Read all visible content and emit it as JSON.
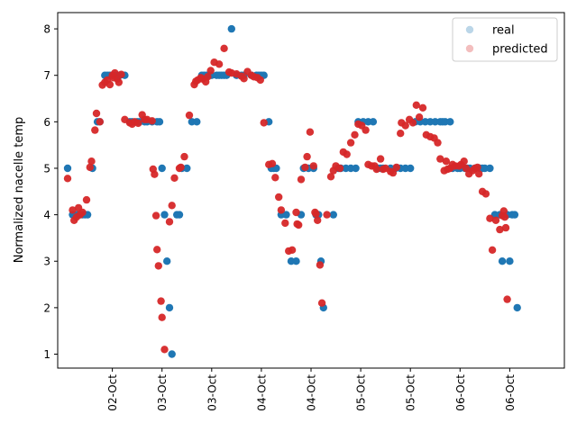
{
  "chart_data": {
    "type": "scatter",
    "title": "",
    "xlabel": "",
    "ylabel": "Normalized nacelle temp",
    "ylim": [
      0.7,
      8.35
    ],
    "xlim": [
      -0.2,
      10.0
    ],
    "yticks": [
      1,
      2,
      3,
      4,
      5,
      6,
      7,
      8
    ],
    "xticks": [
      {
        "x": 0.9,
        "label": "02-Oct"
      },
      {
        "x": 1.9,
        "label": "03-Oct"
      },
      {
        "x": 2.9,
        "label": "03-Oct"
      },
      {
        "x": 3.9,
        "label": "04-Oct"
      },
      {
        "x": 4.9,
        "label": "04-Oct"
      },
      {
        "x": 5.9,
        "label": "05-Oct"
      },
      {
        "x": 6.9,
        "label": "05-Oct"
      },
      {
        "x": 7.9,
        "label": "06-Oct"
      },
      {
        "x": 8.9,
        "label": "06-Oct"
      }
    ],
    "grid": false,
    "legend_position": "top-right",
    "series": [
      {
        "name": "real",
        "color": "#1f77b4",
        "points": [
          [
            0.0,
            5
          ],
          [
            0.1,
            4
          ],
          [
            0.15,
            4
          ],
          [
            0.2,
            4
          ],
          [
            0.25,
            4
          ],
          [
            0.3,
            4
          ],
          [
            0.35,
            4
          ],
          [
            0.4,
            4
          ],
          [
            0.5,
            5
          ],
          [
            0.6,
            6
          ],
          [
            0.65,
            6
          ],
          [
            0.75,
            7
          ],
          [
            0.8,
            7
          ],
          [
            0.85,
            7
          ],
          [
            0.9,
            7
          ],
          [
            0.95,
            7
          ],
          [
            1.0,
            7
          ],
          [
            1.05,
            7
          ],
          [
            1.15,
            7
          ],
          [
            1.25,
            6
          ],
          [
            1.3,
            6
          ],
          [
            1.4,
            6
          ],
          [
            1.45,
            6
          ],
          [
            1.55,
            6
          ],
          [
            1.6,
            6
          ],
          [
            1.7,
            6
          ],
          [
            1.8,
            6
          ],
          [
            1.85,
            6
          ],
          [
            1.9,
            5
          ],
          [
            1.95,
            4
          ],
          [
            2.0,
            3
          ],
          [
            2.05,
            2
          ],
          [
            2.1,
            1
          ],
          [
            2.2,
            4
          ],
          [
            2.25,
            4
          ],
          [
            2.3,
            5
          ],
          [
            2.4,
            5
          ],
          [
            2.5,
            6
          ],
          [
            2.6,
            6
          ],
          [
            2.7,
            7
          ],
          [
            2.75,
            7
          ],
          [
            2.8,
            7
          ],
          [
            2.85,
            7
          ],
          [
            2.9,
            7
          ],
          [
            3.0,
            7
          ],
          [
            3.05,
            7
          ],
          [
            3.1,
            7
          ],
          [
            3.15,
            7
          ],
          [
            3.2,
            7
          ],
          [
            3.3,
            8
          ],
          [
            3.4,
            7
          ],
          [
            3.5,
            7
          ],
          [
            3.55,
            7
          ],
          [
            3.7,
            7
          ],
          [
            3.8,
            7
          ],
          [
            3.85,
            7
          ],
          [
            3.9,
            7
          ],
          [
            3.95,
            7
          ],
          [
            4.05,
            6
          ],
          [
            4.1,
            5
          ],
          [
            4.15,
            5
          ],
          [
            4.2,
            5
          ],
          [
            4.3,
            4
          ],
          [
            4.4,
            4
          ],
          [
            4.5,
            3
          ],
          [
            4.6,
            3
          ],
          [
            4.7,
            4
          ],
          [
            4.75,
            5
          ],
          [
            4.85,
            5
          ],
          [
            4.95,
            5
          ],
          [
            5.0,
            4
          ],
          [
            5.05,
            4
          ],
          [
            5.1,
            3
          ],
          [
            5.15,
            2
          ],
          [
            5.35,
            4
          ],
          [
            5.45,
            5
          ],
          [
            5.5,
            5
          ],
          [
            5.6,
            5
          ],
          [
            5.7,
            5
          ],
          [
            5.8,
            5
          ],
          [
            5.85,
            6
          ],
          [
            5.95,
            6
          ],
          [
            6.05,
            6
          ],
          [
            6.15,
            6
          ],
          [
            6.25,
            5
          ],
          [
            6.3,
            5
          ],
          [
            6.35,
            5
          ],
          [
            6.5,
            5
          ],
          [
            6.6,
            5
          ],
          [
            6.7,
            5
          ],
          [
            6.8,
            5
          ],
          [
            6.9,
            5
          ],
          [
            7.0,
            6
          ],
          [
            7.1,
            6
          ],
          [
            7.2,
            6
          ],
          [
            7.3,
            6
          ],
          [
            7.4,
            6
          ],
          [
            7.5,
            6
          ],
          [
            7.55,
            6
          ],
          [
            7.6,
            6
          ],
          [
            7.7,
            6
          ],
          [
            7.75,
            5
          ],
          [
            7.85,
            5
          ],
          [
            7.9,
            5
          ],
          [
            8.0,
            5
          ],
          [
            8.05,
            5
          ],
          [
            8.1,
            5
          ],
          [
            8.2,
            5
          ],
          [
            8.3,
            5
          ],
          [
            8.35,
            5
          ],
          [
            8.4,
            5
          ],
          [
            8.5,
            5
          ],
          [
            8.6,
            4
          ],
          [
            8.7,
            4
          ],
          [
            8.75,
            3
          ],
          [
            8.85,
            4
          ],
          [
            8.9,
            3
          ],
          [
            8.95,
            4
          ],
          [
            9.0,
            4
          ],
          [
            9.05,
            2
          ]
        ]
      },
      {
        "name": "predicted",
        "color": "#d62728",
        "points": [
          [
            0.0,
            4.78
          ],
          [
            0.1,
            4.1
          ],
          [
            0.13,
            3.88
          ],
          [
            0.18,
            3.95
          ],
          [
            0.22,
            4.15
          ],
          [
            0.25,
            4.0
          ],
          [
            0.3,
            4.05
          ],
          [
            0.38,
            4.32
          ],
          [
            0.45,
            5.02
          ],
          [
            0.48,
            5.15
          ],
          [
            0.55,
            5.82
          ],
          [
            0.58,
            6.18
          ],
          [
            0.65,
            6.0
          ],
          [
            0.7,
            6.79
          ],
          [
            0.75,
            6.85
          ],
          [
            0.8,
            6.9
          ],
          [
            0.85,
            6.8
          ],
          [
            0.9,
            7.0
          ],
          [
            0.92,
            6.95
          ],
          [
            0.95,
            7.05
          ],
          [
            1.0,
            6.92
          ],
          [
            1.03,
            6.85
          ],
          [
            1.08,
            7.02
          ],
          [
            1.15,
            6.05
          ],
          [
            1.25,
            5.98
          ],
          [
            1.3,
            5.95
          ],
          [
            1.35,
            6.0
          ],
          [
            1.42,
            5.97
          ],
          [
            1.5,
            6.15
          ],
          [
            1.55,
            6.05
          ],
          [
            1.6,
            6.05
          ],
          [
            1.7,
            6.02
          ],
          [
            1.72,
            4.98
          ],
          [
            1.75,
            4.87
          ],
          [
            1.78,
            3.98
          ],
          [
            1.8,
            3.25
          ],
          [
            1.83,
            2.9
          ],
          [
            1.88,
            2.14
          ],
          [
            1.9,
            1.79
          ],
          [
            1.95,
            1.1
          ],
          [
            2.05,
            3.85
          ],
          [
            2.1,
            4.2
          ],
          [
            2.15,
            4.79
          ],
          [
            2.25,
            5.0
          ],
          [
            2.28,
            5.02
          ],
          [
            2.35,
            5.25
          ],
          [
            2.45,
            6.14
          ],
          [
            2.55,
            6.8
          ],
          [
            2.58,
            6.87
          ],
          [
            2.62,
            6.9
          ],
          [
            2.68,
            6.95
          ],
          [
            2.72,
            6.92
          ],
          [
            2.78,
            6.86
          ],
          [
            2.82,
            6.97
          ],
          [
            2.88,
            7.1
          ],
          [
            2.95,
            7.28
          ],
          [
            3.05,
            7.24
          ],
          [
            3.15,
            7.58
          ],
          [
            3.25,
            7.07
          ],
          [
            3.3,
            7.05
          ],
          [
            3.4,
            7.03
          ],
          [
            3.5,
            6.98
          ],
          [
            3.55,
            6.93
          ],
          [
            3.62,
            7.08
          ],
          [
            3.7,
            7.0
          ],
          [
            3.75,
            6.97
          ],
          [
            3.82,
            6.95
          ],
          [
            3.88,
            6.9
          ],
          [
            3.95,
            5.98
          ],
          [
            4.05,
            5.08
          ],
          [
            4.12,
            5.1
          ],
          [
            4.18,
            4.8
          ],
          [
            4.25,
            4.38
          ],
          [
            4.3,
            4.1
          ],
          [
            4.38,
            3.82
          ],
          [
            4.45,
            3.22
          ],
          [
            4.52,
            3.24
          ],
          [
            4.62,
            3.8
          ],
          [
            4.6,
            4.05
          ],
          [
            4.65,
            3.78
          ],
          [
            4.7,
            4.76
          ],
          [
            4.78,
            5.02
          ],
          [
            4.82,
            5.25
          ],
          [
            4.88,
            5.78
          ],
          [
            4.95,
            5.05
          ],
          [
            4.98,
            4.05
          ],
          [
            5.0,
            4.02
          ],
          [
            5.03,
            3.88
          ],
          [
            5.08,
            2.92
          ],
          [
            5.12,
            2.1
          ],
          [
            5.22,
            4.0
          ],
          [
            5.3,
            4.82
          ],
          [
            5.35,
            4.95
          ],
          [
            5.4,
            5.05
          ],
          [
            5.48,
            5.0
          ],
          [
            5.55,
            5.35
          ],
          [
            5.62,
            5.3
          ],
          [
            5.7,
            5.55
          ],
          [
            5.78,
            5.72
          ],
          [
            5.85,
            5.95
          ],
          [
            5.92,
            5.92
          ],
          [
            6.0,
            5.82
          ],
          [
            6.05,
            5.08
          ],
          [
            6.12,
            5.05
          ],
          [
            6.18,
            5.05
          ],
          [
            6.22,
            4.98
          ],
          [
            6.3,
            5.2
          ],
          [
            6.35,
            4.98
          ],
          [
            6.4,
            5.0
          ],
          [
            6.5,
            4.93
          ],
          [
            6.55,
            4.9
          ],
          [
            6.62,
            5.02
          ],
          [
            6.7,
            5.75
          ],
          [
            6.72,
            5.98
          ],
          [
            6.8,
            5.92
          ],
          [
            6.88,
            6.05
          ],
          [
            6.95,
            5.98
          ],
          [
            7.02,
            6.36
          ],
          [
            7.08,
            6.1
          ],
          [
            7.15,
            6.3
          ],
          [
            7.22,
            5.72
          ],
          [
            7.3,
            5.68
          ],
          [
            7.38,
            5.65
          ],
          [
            7.45,
            5.55
          ],
          [
            7.5,
            5.2
          ],
          [
            7.58,
            4.95
          ],
          [
            7.62,
            5.15
          ],
          [
            7.65,
            4.98
          ],
          [
            7.7,
            5.0
          ],
          [
            7.75,
            5.08
          ],
          [
            7.8,
            5.05
          ],
          [
            7.88,
            5.05
          ],
          [
            7.92,
            5.08
          ],
          [
            7.98,
            5.15
          ],
          [
            8.02,
            5.0
          ],
          [
            8.08,
            4.88
          ],
          [
            8.15,
            4.95
          ],
          [
            8.2,
            5.0
          ],
          [
            8.25,
            5.02
          ],
          [
            8.28,
            4.88
          ],
          [
            8.35,
            4.5
          ],
          [
            8.42,
            4.45
          ],
          [
            8.5,
            3.92
          ],
          [
            8.55,
            3.24
          ],
          [
            8.62,
            3.88
          ],
          [
            8.7,
            3.68
          ],
          [
            8.75,
            3.98
          ],
          [
            8.78,
            4.08
          ],
          [
            8.8,
            3.95
          ],
          [
            8.82,
            3.72
          ],
          [
            8.85,
            2.18
          ]
        ]
      }
    ]
  }
}
